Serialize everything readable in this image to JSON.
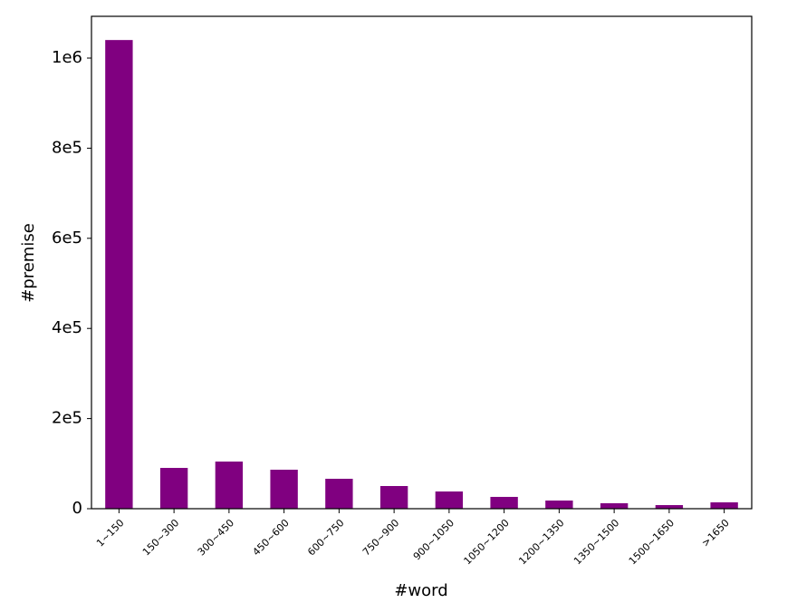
{
  "chart_data": {
    "type": "bar",
    "x_label": "#word",
    "y_label": "#premise",
    "categories": [
      "1~150",
      "150~300",
      "300~450",
      "450~600",
      "600~750",
      "750~900",
      "900~1050",
      "1050~1200",
      "1200~1350",
      "1350~1500",
      "1500~1650",
      ">1650"
    ],
    "values": [
      1040000,
      90500,
      104600,
      86500,
      66400,
      50300,
      38200,
      26200,
      18100,
      12100,
      8000,
      14100
    ],
    "color": "#800080",
    "ylim": [
      0,
      1092600
    ],
    "yticks": [
      0,
      {
        "value": 200000,
        "label": "2e5"
      },
      {
        "value": 400000,
        "label": "4e5"
      },
      {
        "value": 600000,
        "label": "6e5"
      },
      {
        "value": 800000,
        "label": "8e5"
      },
      {
        "value": 1000000,
        "label": "1e6"
      }
    ],
    "grid": false
  }
}
